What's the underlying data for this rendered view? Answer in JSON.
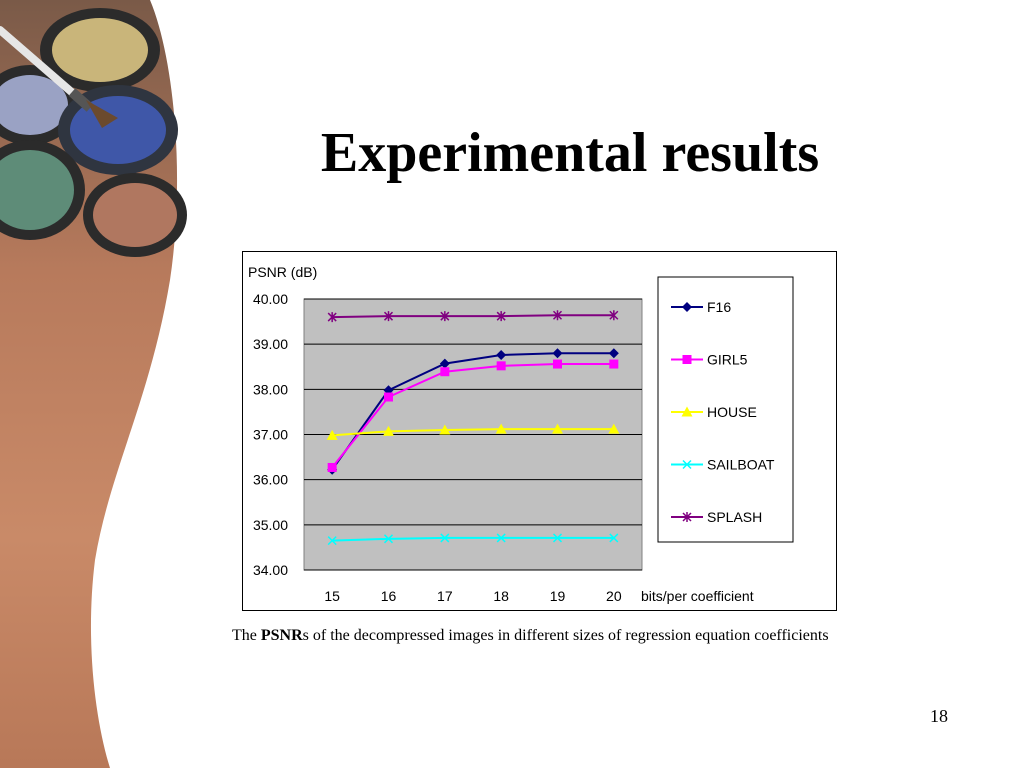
{
  "slide": {
    "title": "Experimental results",
    "caption_before": "The ",
    "caption_bold": "PSNR",
    "caption_after": "s of the decompressed images in different sizes of regression equation coefficients",
    "page_number": "18"
  },
  "colors": {
    "plot_background": "#c0c0c0",
    "F16": "#000080",
    "GIRL5": "#ff00ff",
    "HOUSE": "#ffff00",
    "SAILBOAT": "#00ffff",
    "SPLASH": "#800080"
  },
  "chart_data": {
    "type": "line",
    "title": "",
    "ylabel": "PSNR (dB)",
    "xlabel": "bits/per coefficient",
    "categories": [
      "15",
      "16",
      "17",
      "18",
      "19",
      "20"
    ],
    "y_tick_labels": [
      "40.00",
      "39.00",
      "38.00",
      "37.00",
      "36.00",
      "35.00",
      "34.00"
    ],
    "ylim": [
      34,
      40
    ],
    "grid": true,
    "legend_position": "right",
    "series": [
      {
        "name": "F16",
        "marker": "diamond",
        "values": [
          36.22,
          37.98,
          38.57,
          38.76,
          38.8,
          38.8
        ]
      },
      {
        "name": "GIRL5",
        "marker": "square",
        "values": [
          36.27,
          37.83,
          38.39,
          38.52,
          38.56,
          38.56
        ]
      },
      {
        "name": "HOUSE",
        "marker": "triangle",
        "values": [
          36.98,
          37.07,
          37.1,
          37.12,
          37.12,
          37.12
        ]
      },
      {
        "name": "SAILBOAT",
        "marker": "x",
        "values": [
          34.65,
          34.69,
          34.71,
          34.71,
          34.71,
          34.71
        ]
      },
      {
        "name": "SPLASH",
        "marker": "star",
        "values": [
          39.6,
          39.62,
          39.62,
          39.62,
          39.64,
          39.64
        ]
      }
    ]
  }
}
